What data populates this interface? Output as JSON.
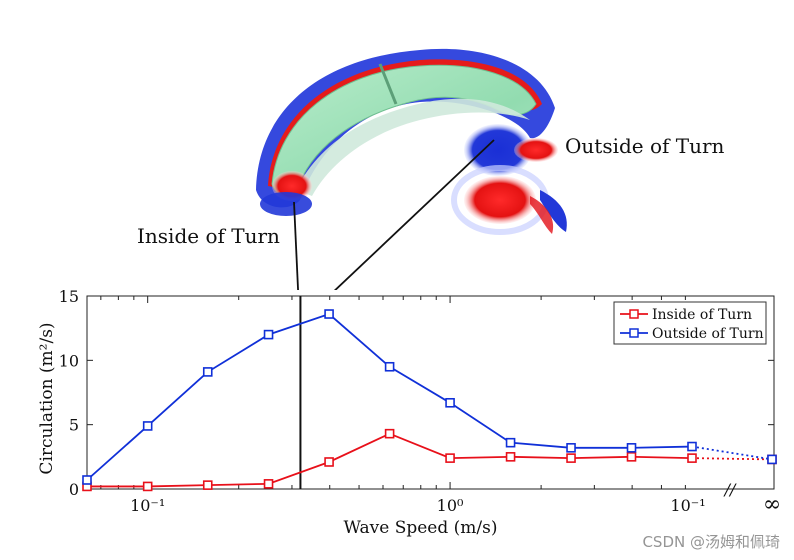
{
  "annotations": {
    "inside_label": "Inside of Turn",
    "outside_label": "Outside of Turn"
  },
  "watermark": "CSDN @汤姆和佩琦",
  "colors": {
    "inside": "#e8101a",
    "outside": "#1030d8",
    "vortex_red": "#e21018",
    "vortex_blue": "#1830d0",
    "wing": "#9fe0b8"
  },
  "chart_data": {
    "type": "line",
    "title": "",
    "xlabel": "Wave Speed (m/s)",
    "ylabel": "Circulation (m²/s)",
    "xscale": "log",
    "xlim": [
      0.063,
      6.31
    ],
    "ylim": [
      0,
      15
    ],
    "yticks": [
      0,
      5,
      10,
      15
    ],
    "xtick_labels": [
      "10⁻¹",
      "10⁰",
      "10⁻¹",
      "∞"
    ],
    "axis_break_symbol": "//",
    "vertical_line_x": 0.32,
    "grid": false,
    "legend_position": "top-right",
    "series": [
      {
        "name": "Inside of Turn",
        "color": "#e8101a",
        "x": [
          0.063,
          0.1,
          0.158,
          0.251,
          0.398,
          0.631,
          1.0,
          1.585,
          2.512,
          3.981,
          6.31,
          25.0
        ],
        "values": [
          0.2,
          0.2,
          0.3,
          0.4,
          2.1,
          4.3,
          2.4,
          2.5,
          2.4,
          2.5,
          2.4,
          2.3
        ],
        "dotted_tail": [
          6.31,
          25.0
        ]
      },
      {
        "name": "Outside of Turn",
        "color": "#1030d8",
        "x": [
          0.063,
          0.1,
          0.158,
          0.251,
          0.398,
          0.631,
          1.0,
          1.585,
          2.512,
          3.981,
          6.31,
          25.0
        ],
        "values": [
          0.7,
          4.9,
          9.1,
          12.0,
          13.6,
          9.5,
          6.7,
          3.6,
          3.2,
          3.2,
          3.3,
          2.3
        ],
        "dotted_tail": [
          6.31,
          25.0
        ]
      }
    ]
  }
}
